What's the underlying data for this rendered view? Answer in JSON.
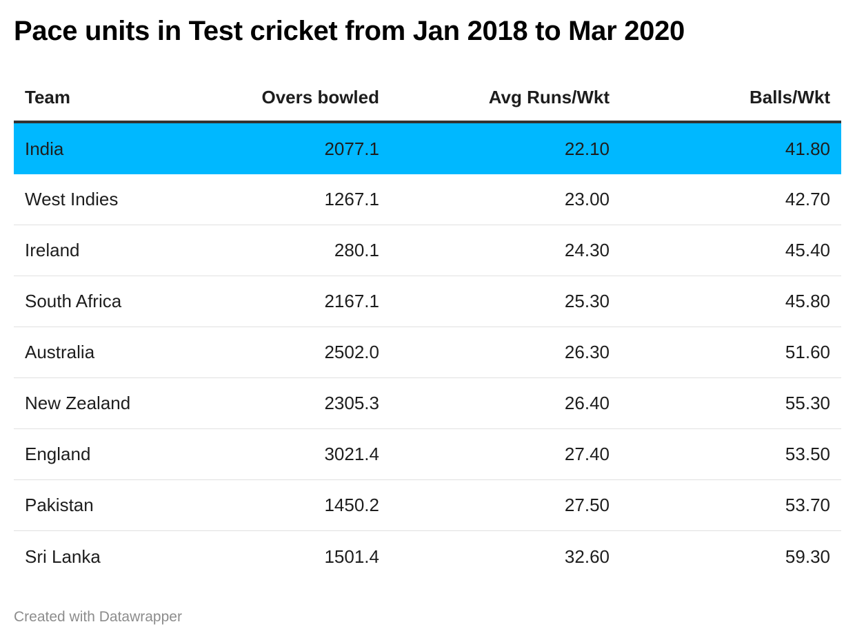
{
  "title": "Pace units in Test cricket from Jan 2018 to Mar 2020",
  "footer": "Created with Datawrapper",
  "colors": {
    "highlight": "#00b8ff",
    "header_rule": "#333333",
    "row_divider": "#e0e0e0",
    "footer_text": "#8c8c8c"
  },
  "chart_data": {
    "type": "table",
    "title": "Pace units in Test cricket from Jan 2018 to Mar 2020",
    "columns": [
      "Team",
      "Overs bowled",
      "Avg Runs/Wkt",
      "Balls/Wkt"
    ],
    "rows": [
      {
        "team": "India",
        "overs": "2077.1",
        "avg": "22.10",
        "balls": "41.80",
        "highlight": true
      },
      {
        "team": "West Indies",
        "overs": "1267.1",
        "avg": "23.00",
        "balls": "42.70",
        "highlight": false
      },
      {
        "team": "Ireland",
        "overs": "280.1",
        "avg": "24.30",
        "balls": "45.40",
        "highlight": false
      },
      {
        "team": "South Africa",
        "overs": "2167.1",
        "avg": "25.30",
        "balls": "45.80",
        "highlight": false
      },
      {
        "team": "Australia",
        "overs": "2502.0",
        "avg": "26.30",
        "balls": "51.60",
        "highlight": false
      },
      {
        "team": "New Zealand",
        "overs": "2305.3",
        "avg": "26.40",
        "balls": "55.30",
        "highlight": false
      },
      {
        "team": "England",
        "overs": "3021.4",
        "avg": "27.40",
        "balls": "53.50",
        "highlight": false
      },
      {
        "team": "Pakistan",
        "overs": "1450.2",
        "avg": "27.50",
        "balls": "53.70",
        "highlight": false
      },
      {
        "team": "Sri Lanka",
        "overs": "1501.4",
        "avg": "32.60",
        "balls": "59.30",
        "highlight": false
      }
    ]
  }
}
